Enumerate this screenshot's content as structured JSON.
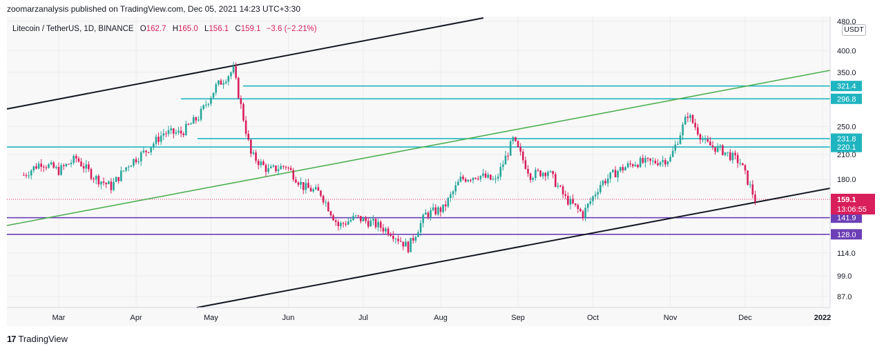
{
  "header": {
    "publisher_line": "zoomarzanalysis published on TradingView.com, Dec 05, 2021 14:23 UTC+3:30"
  },
  "legend": {
    "symbol": "Litecoin / TetherUS, 1D, BINANCE",
    "o_label": "O",
    "o": "162.7",
    "h_label": "H",
    "h": "165.0",
    "l_label": "L",
    "l": "156.1",
    "c_label": "C",
    "c": "159.1",
    "change": "−3.6 (−2.21%)"
  },
  "currency": "USDT",
  "footer": {
    "logo": "17",
    "brand": "TradingView"
  },
  "colors": {
    "up": "#26a69a",
    "down": "#d81e5b",
    "teal_line": "#1fb5c0",
    "purple_line": "#6b3fb5",
    "green_line": "#4caf50",
    "channel": "#131722"
  },
  "chart_data": {
    "type": "candlestick",
    "x_ticks": [
      "Mar",
      "Apr",
      "May",
      "Jun",
      "Jul",
      "Aug",
      "Sep",
      "Oct",
      "Nov",
      "Dec",
      "2022"
    ],
    "y_ticks": [
      "480.0",
      "400.0",
      "350.0",
      "250.0",
      "210.0",
      "180.0",
      "114.0",
      "99.0",
      "87.0"
    ],
    "price_labels": [
      {
        "value": 321.4,
        "text": "321.4",
        "color": "#1fb5c0"
      },
      {
        "value": 296.8,
        "text": "296.8",
        "color": "#1fb5c0"
      },
      {
        "value": 231.8,
        "text": "231.8",
        "color": "#1fb5c0"
      },
      {
        "value": 220.1,
        "text": "220.1",
        "color": "#1fb5c0"
      },
      {
        "value": 141.9,
        "text": "141.9",
        "color": "#6b3fb5"
      },
      {
        "value": 128.0,
        "text": "128.0",
        "color": "#6b3fb5"
      }
    ],
    "last_price": {
      "value": 159.1,
      "text": "159.1",
      "countdown": "13:06:55",
      "color": "#d81e5b"
    },
    "horizontal_levels": [
      321.4,
      296.8,
      231.8,
      220.1,
      141.9,
      128.0
    ],
    "ohlc_series": [
      {
        "date": "2021-02-15",
        "c": 185
      },
      {
        "date": "2021-02-22",
        "c": 200
      },
      {
        "date": "2021-03-01",
        "c": 190
      },
      {
        "date": "2021-03-08",
        "c": 205
      },
      {
        "date": "2021-03-15",
        "c": 183
      },
      {
        "date": "2021-03-22",
        "c": 172
      },
      {
        "date": "2021-03-29",
        "c": 198
      },
      {
        "date": "2021-04-05",
        "c": 215
      },
      {
        "date": "2021-04-12",
        "c": 240
      },
      {
        "date": "2021-04-19",
        "c": 240
      },
      {
        "date": "2021-04-26",
        "c": 265
      },
      {
        "date": "2021-05-03",
        "c": 320
      },
      {
        "date": "2021-05-10",
        "c": 355
      },
      {
        "date": "2021-05-17",
        "c": 210
      },
      {
        "date": "2021-05-24",
        "c": 190
      },
      {
        "date": "2021-05-31",
        "c": 196
      },
      {
        "date": "2021-06-07",
        "c": 172
      },
      {
        "date": "2021-06-14",
        "c": 165
      },
      {
        "date": "2021-06-21",
        "c": 135
      },
      {
        "date": "2021-06-28",
        "c": 142
      },
      {
        "date": "2021-07-05",
        "c": 137
      },
      {
        "date": "2021-07-12",
        "c": 130
      },
      {
        "date": "2021-07-19",
        "c": 118
      },
      {
        "date": "2021-07-26",
        "c": 145
      },
      {
        "date": "2021-08-02",
        "c": 150
      },
      {
        "date": "2021-08-09",
        "c": 180
      },
      {
        "date": "2021-08-16",
        "c": 185
      },
      {
        "date": "2021-08-23",
        "c": 178
      },
      {
        "date": "2021-08-30",
        "c": 230
      },
      {
        "date": "2021-09-06",
        "c": 185
      },
      {
        "date": "2021-09-13",
        "c": 190
      },
      {
        "date": "2021-09-20",
        "c": 160
      },
      {
        "date": "2021-09-27",
        "c": 145
      },
      {
        "date": "2021-10-04",
        "c": 175
      },
      {
        "date": "2021-10-11",
        "c": 190
      },
      {
        "date": "2021-10-18",
        "c": 200
      },
      {
        "date": "2021-10-25",
        "c": 200
      },
      {
        "date": "2021-11-01",
        "c": 205
      },
      {
        "date": "2021-11-08",
        "c": 270
      },
      {
        "date": "2021-11-15",
        "c": 225
      },
      {
        "date": "2021-11-22",
        "c": 215
      },
      {
        "date": "2021-11-29",
        "c": 200
      },
      {
        "date": "2021-12-05",
        "c": 159.1
      }
    ]
  }
}
